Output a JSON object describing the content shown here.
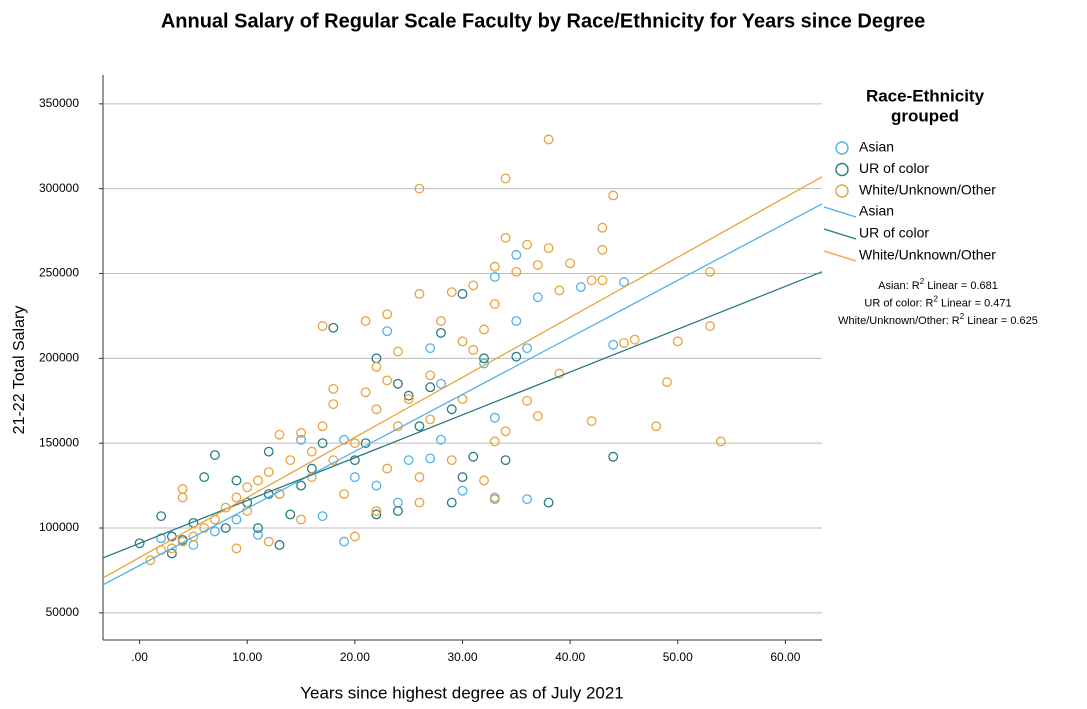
{
  "chart_data": {
    "type": "scatter",
    "title": "Annual Salary of Regular Scale Faculty by Race/Ethnicity for Years since Degree",
    "x_label": "Years since highest degree as of July 2021",
    "y_label": "21-22 Total Salary",
    "xlim": [
      -3.4,
      63.4
    ],
    "ylim": [
      34000,
      367000
    ],
    "xticks": [
      {
        "value": 0,
        "label": ".00"
      },
      {
        "value": 10,
        "label": "10.00"
      },
      {
        "value": 20,
        "label": "20.00"
      },
      {
        "value": 30,
        "label": "30.00"
      },
      {
        "value": 40,
        "label": "40.00"
      },
      {
        "value": 50,
        "label": "50.00"
      },
      {
        "value": 60,
        "label": "60.00"
      }
    ],
    "yticks": [
      50000,
      100000,
      150000,
      200000,
      250000,
      300000,
      350000
    ],
    "grid": true,
    "legend_title": [
      "Race-Ethnicity",
      "grouped"
    ],
    "series": [
      {
        "name": "Asian",
        "color": "#4fb3e8",
        "x": [
          2,
          5,
          7,
          9,
          11,
          13,
          15,
          17,
          19,
          19,
          20,
          22,
          23,
          24,
          25,
          27,
          27,
          28,
          28,
          30,
          32,
          33,
          33,
          35,
          35,
          36,
          36,
          37,
          41,
          44,
          45,
          33
        ],
        "values": [
          94000,
          90000,
          98000,
          105000,
          96000,
          120000,
          152000,
          107000,
          92000,
          152000,
          130000,
          125000,
          216000,
          115000,
          140000,
          141000,
          206000,
          185000,
          152000,
          122000,
          197000,
          165000,
          248000,
          261000,
          222000,
          206000,
          117000,
          236000,
          242000,
          208000,
          245000,
          117000
        ]
      },
      {
        "name": "UR of color",
        "color": "#2b7b82",
        "x": [
          0,
          2,
          3,
          4,
          5,
          7,
          6,
          8,
          9,
          10,
          12,
          12,
          13,
          14,
          15,
          16,
          18,
          20,
          21,
          22,
          22,
          24,
          25,
          26,
          27,
          28,
          29,
          29,
          30,
          30,
          31,
          32,
          34,
          35,
          38,
          44,
          24,
          17,
          11,
          3
        ],
        "values": [
          91000,
          107000,
          85000,
          93000,
          103000,
          143000,
          130000,
          100000,
          128000,
          115000,
          120000,
          145000,
          90000,
          108000,
          125000,
          135000,
          218000,
          140000,
          150000,
          200000,
          108000,
          185000,
          178000,
          160000,
          183000,
          215000,
          170000,
          115000,
          238000,
          130000,
          142000,
          200000,
          140000,
          201000,
          115000,
          142000,
          110000,
          150000,
          100000,
          95000
        ]
      },
      {
        "name": "White/Unknown/Other",
        "color": "#e9a33b",
        "x": [
          38,
          34,
          26,
          44,
          43,
          34,
          36,
          38,
          43,
          40,
          53,
          42,
          43,
          39,
          26,
          29,
          33,
          35,
          37,
          31,
          33,
          23,
          28,
          17,
          53,
          21,
          32,
          30,
          24,
          46,
          50,
          45,
          22,
          18,
          23,
          39,
          49,
          25,
          30,
          36,
          18,
          22,
          42,
          48,
          37,
          27,
          54,
          34,
          33,
          29,
          26,
          32,
          33,
          26,
          22,
          20,
          17,
          15,
          13,
          16,
          14,
          12,
          11,
          10,
          9,
          8,
          7,
          6,
          5,
          4,
          3,
          2,
          1,
          4,
          4,
          9,
          12,
          15,
          18,
          20,
          21,
          24,
          10,
          13,
          16,
          19,
          23,
          27,
          31
        ],
        "values": [
          329000,
          306000,
          300000,
          296000,
          277000,
          271000,
          267000,
          265000,
          264000,
          256000,
          251000,
          246000,
          246000,
          240000,
          238000,
          239000,
          254000,
          251000,
          255000,
          243000,
          232000,
          226000,
          222000,
          219000,
          219000,
          222000,
          217000,
          210000,
          204000,
          211000,
          210000,
          209000,
          195000,
          182000,
          187000,
          191000,
          186000,
          176000,
          176000,
          175000,
          173000,
          170000,
          163000,
          160000,
          166000,
          164000,
          151000,
          157000,
          151000,
          140000,
          130000,
          128000,
          118000,
          115000,
          110000,
          95000,
          160000,
          156000,
          155000,
          145000,
          140000,
          133000,
          128000,
          124000,
          118000,
          112000,
          105000,
          100000,
          95000,
          92000,
          88000,
          87000,
          81000,
          123000,
          118000,
          88000,
          92000,
          105000,
          140000,
          150000,
          180000,
          160000,
          110000,
          120000,
          130000,
          120000,
          135000,
          190000,
          205000
        ]
      }
    ],
    "fit_lines": [
      {
        "name": "Asian",
        "color": "#4fb3e8",
        "x": [
          -3.4,
          63.4
        ],
        "values": [
          66500,
          291000
        ],
        "r2_label": {
          "prefix": "Asian: R",
          "sup": "2",
          "suffix": " Linear = 0.681"
        }
      },
      {
        "name": "UR of color",
        "color": "#2b7b82",
        "x": [
          -3.4,
          63.4
        ],
        "values": [
          82400,
          251000
        ],
        "r2_label": {
          "prefix": "UR of color: R",
          "sup": "2",
          "suffix": " Linear = 0.471"
        }
      },
      {
        "name": "White/Unknown/Other",
        "color": "#e9a33b",
        "x": [
          -3.4,
          63.4
        ],
        "values": [
          70600,
          307000
        ],
        "r2_label": {
          "prefix": "White/Unknown/Other: R",
          "sup": "2",
          "suffix": " Linear = 0.625"
        }
      }
    ]
  }
}
